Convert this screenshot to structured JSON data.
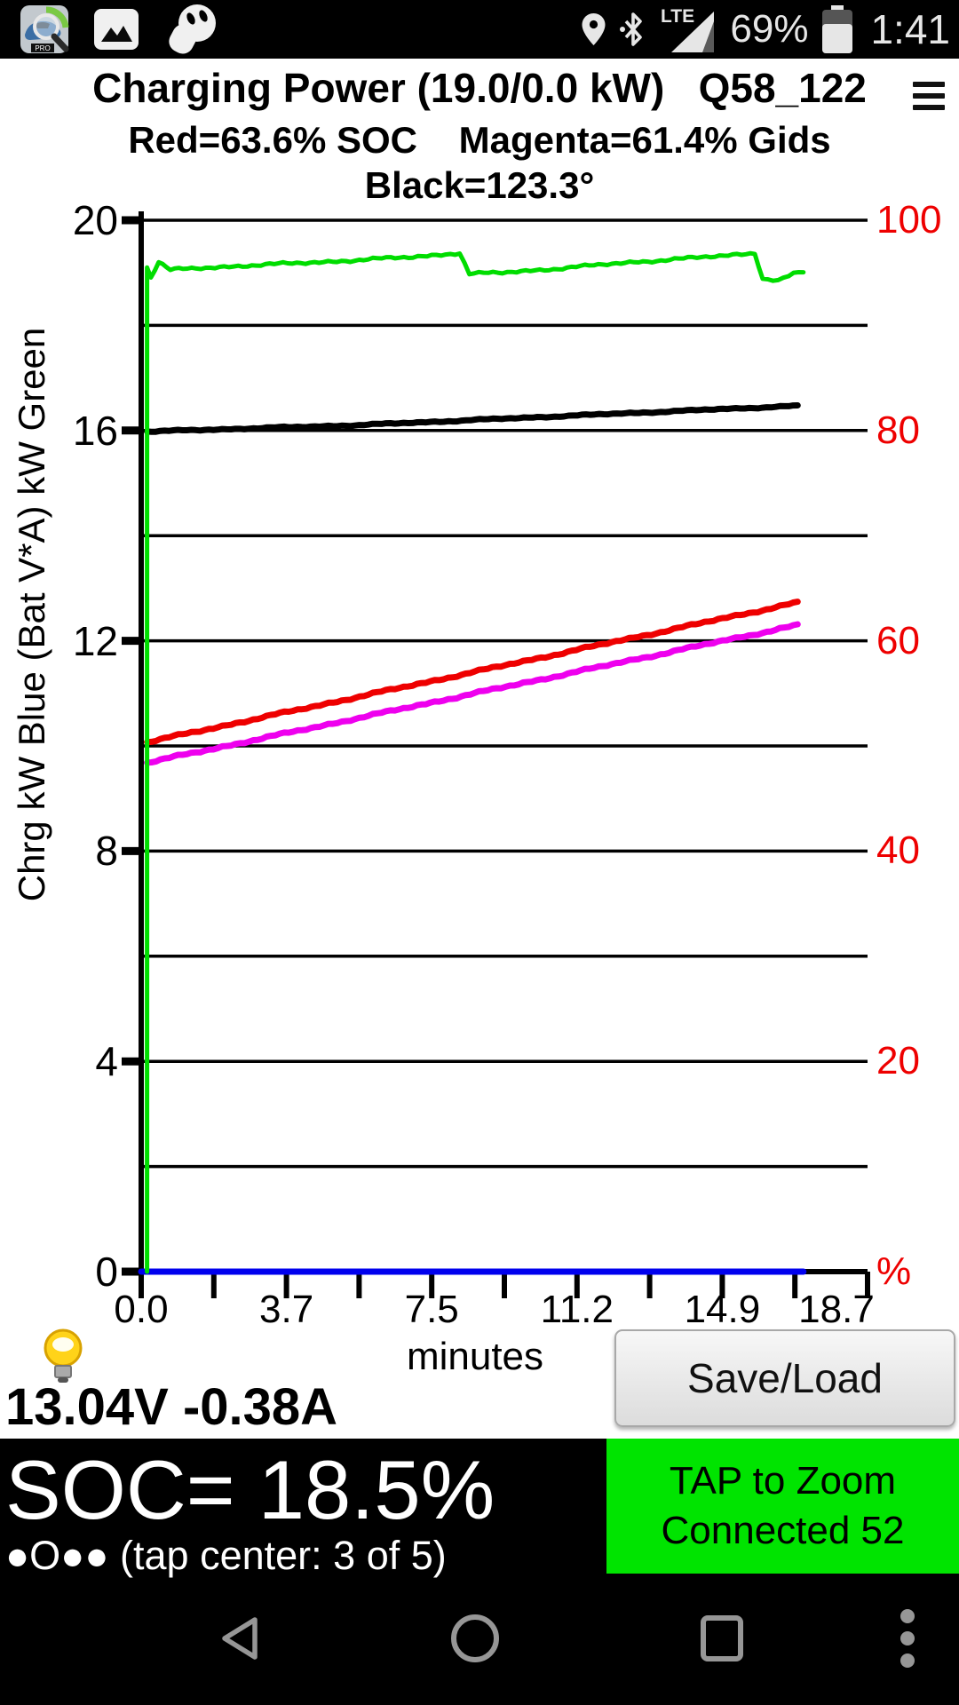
{
  "status_bar": {
    "time": "1:41",
    "battery_percent": "69%",
    "network_label": "LTE",
    "app_icons": [
      "leafspy-pro",
      "gallery",
      "ev-plug"
    ],
    "right_icons": [
      "location",
      "bluetooth",
      "signal",
      "battery"
    ]
  },
  "header": {
    "title": "Charging Power (19.0/0.0 kW)   Q58_122",
    "subtitle1": "Red=63.6% SOC    Magenta=61.4% Gids",
    "subtitle2": "Black=123.3°",
    "menu_icon": "hamburger-menu"
  },
  "chart_data": {
    "type": "line",
    "xlabel": "minutes",
    "x_max": 18.7,
    "x_tick_labels": [
      "0.0",
      "3.7",
      "7.5",
      "11.2",
      "14.9",
      "18.7"
    ],
    "minor_ticks_between_majors": true,
    "grid": "horizontal-every-2kW",
    "left_axis": {
      "label": "Chrg kW Blue  (Bat V*A) kW Green",
      "tick_labels": [
        "20",
        "16",
        "12",
        "8",
        "4",
        "0"
      ],
      "max": 20,
      "grid_step": 2
    },
    "right_axis": {
      "tick_labels": [
        "100",
        "80",
        "60",
        "40",
        "20",
        "%"
      ],
      "color": "#ee0000",
      "max": 100
    },
    "series": [
      {
        "name": "chrg-kw-blue",
        "color": "#0000ee",
        "width": 7,
        "noise": 0,
        "points": [
          [
            0.0,
            0
          ],
          [
            17.05,
            0
          ]
        ]
      },
      {
        "name": "gids-percent-magenta",
        "color": "#ee00ee",
        "width": 7,
        "noise": 1.3,
        "points": [
          [
            0.15,
            9.68
          ],
          [
            16.9,
            12.3
          ]
        ]
      },
      {
        "name": "soc-percent-red",
        "color": "#ee0000",
        "width": 7,
        "noise": 1.3,
        "points": [
          [
            0.15,
            10.07
          ],
          [
            16.9,
            12.73
          ]
        ]
      },
      {
        "name": "temp-black",
        "color": "#000000",
        "width": 7,
        "noise": 0.8,
        "points": [
          [
            0.15,
            15.98
          ],
          [
            5.5,
            16.1
          ],
          [
            11.0,
            16.28
          ],
          [
            16.9,
            16.47
          ]
        ]
      },
      {
        "name": "bat-va-kw-green",
        "color": "#00dd00",
        "width": 5,
        "noise": 1.6,
        "points": [
          [
            0.15,
            0
          ],
          [
            0.15,
            19.1
          ],
          [
            0.25,
            18.92
          ],
          [
            0.45,
            19.2
          ],
          [
            0.75,
            19.05
          ],
          [
            1.3,
            19.08
          ],
          [
            2.5,
            19.13
          ],
          [
            4.0,
            19.18
          ],
          [
            5.5,
            19.24
          ],
          [
            7.0,
            19.3
          ],
          [
            8.2,
            19.38
          ],
          [
            8.45,
            18.98
          ],
          [
            9.3,
            19.0
          ],
          [
            10.5,
            19.07
          ],
          [
            12.0,
            19.16
          ],
          [
            13.5,
            19.25
          ],
          [
            15.0,
            19.32
          ],
          [
            15.8,
            19.38
          ],
          [
            16.0,
            18.9
          ],
          [
            16.4,
            18.85
          ],
          [
            16.8,
            18.98
          ],
          [
            17.05,
            19.02
          ]
        ]
      }
    ]
  },
  "footer": {
    "voltage_amps": "13.04V -0.38A",
    "save_load": "Save/Load"
  },
  "bottom_bar": {
    "soc": "SOC= 18.5%",
    "pager": "●O●● (tap center: 3 of 5)",
    "zoom_line1": "TAP to Zoom",
    "zoom_line2": "Connected 52",
    "zoom_button_color": "#00e400"
  },
  "nav_bar": {
    "icons": [
      "back",
      "home",
      "recents",
      "overflow-menu"
    ]
  },
  "colors": {
    "green_line": "#00dd00",
    "blue_line": "#0000ee",
    "red_line": "#ee0000",
    "magenta_line": "#ee00ee",
    "black_line": "#000000",
    "right_axis_text": "#ee0000",
    "zoom_button": "#00e400"
  }
}
